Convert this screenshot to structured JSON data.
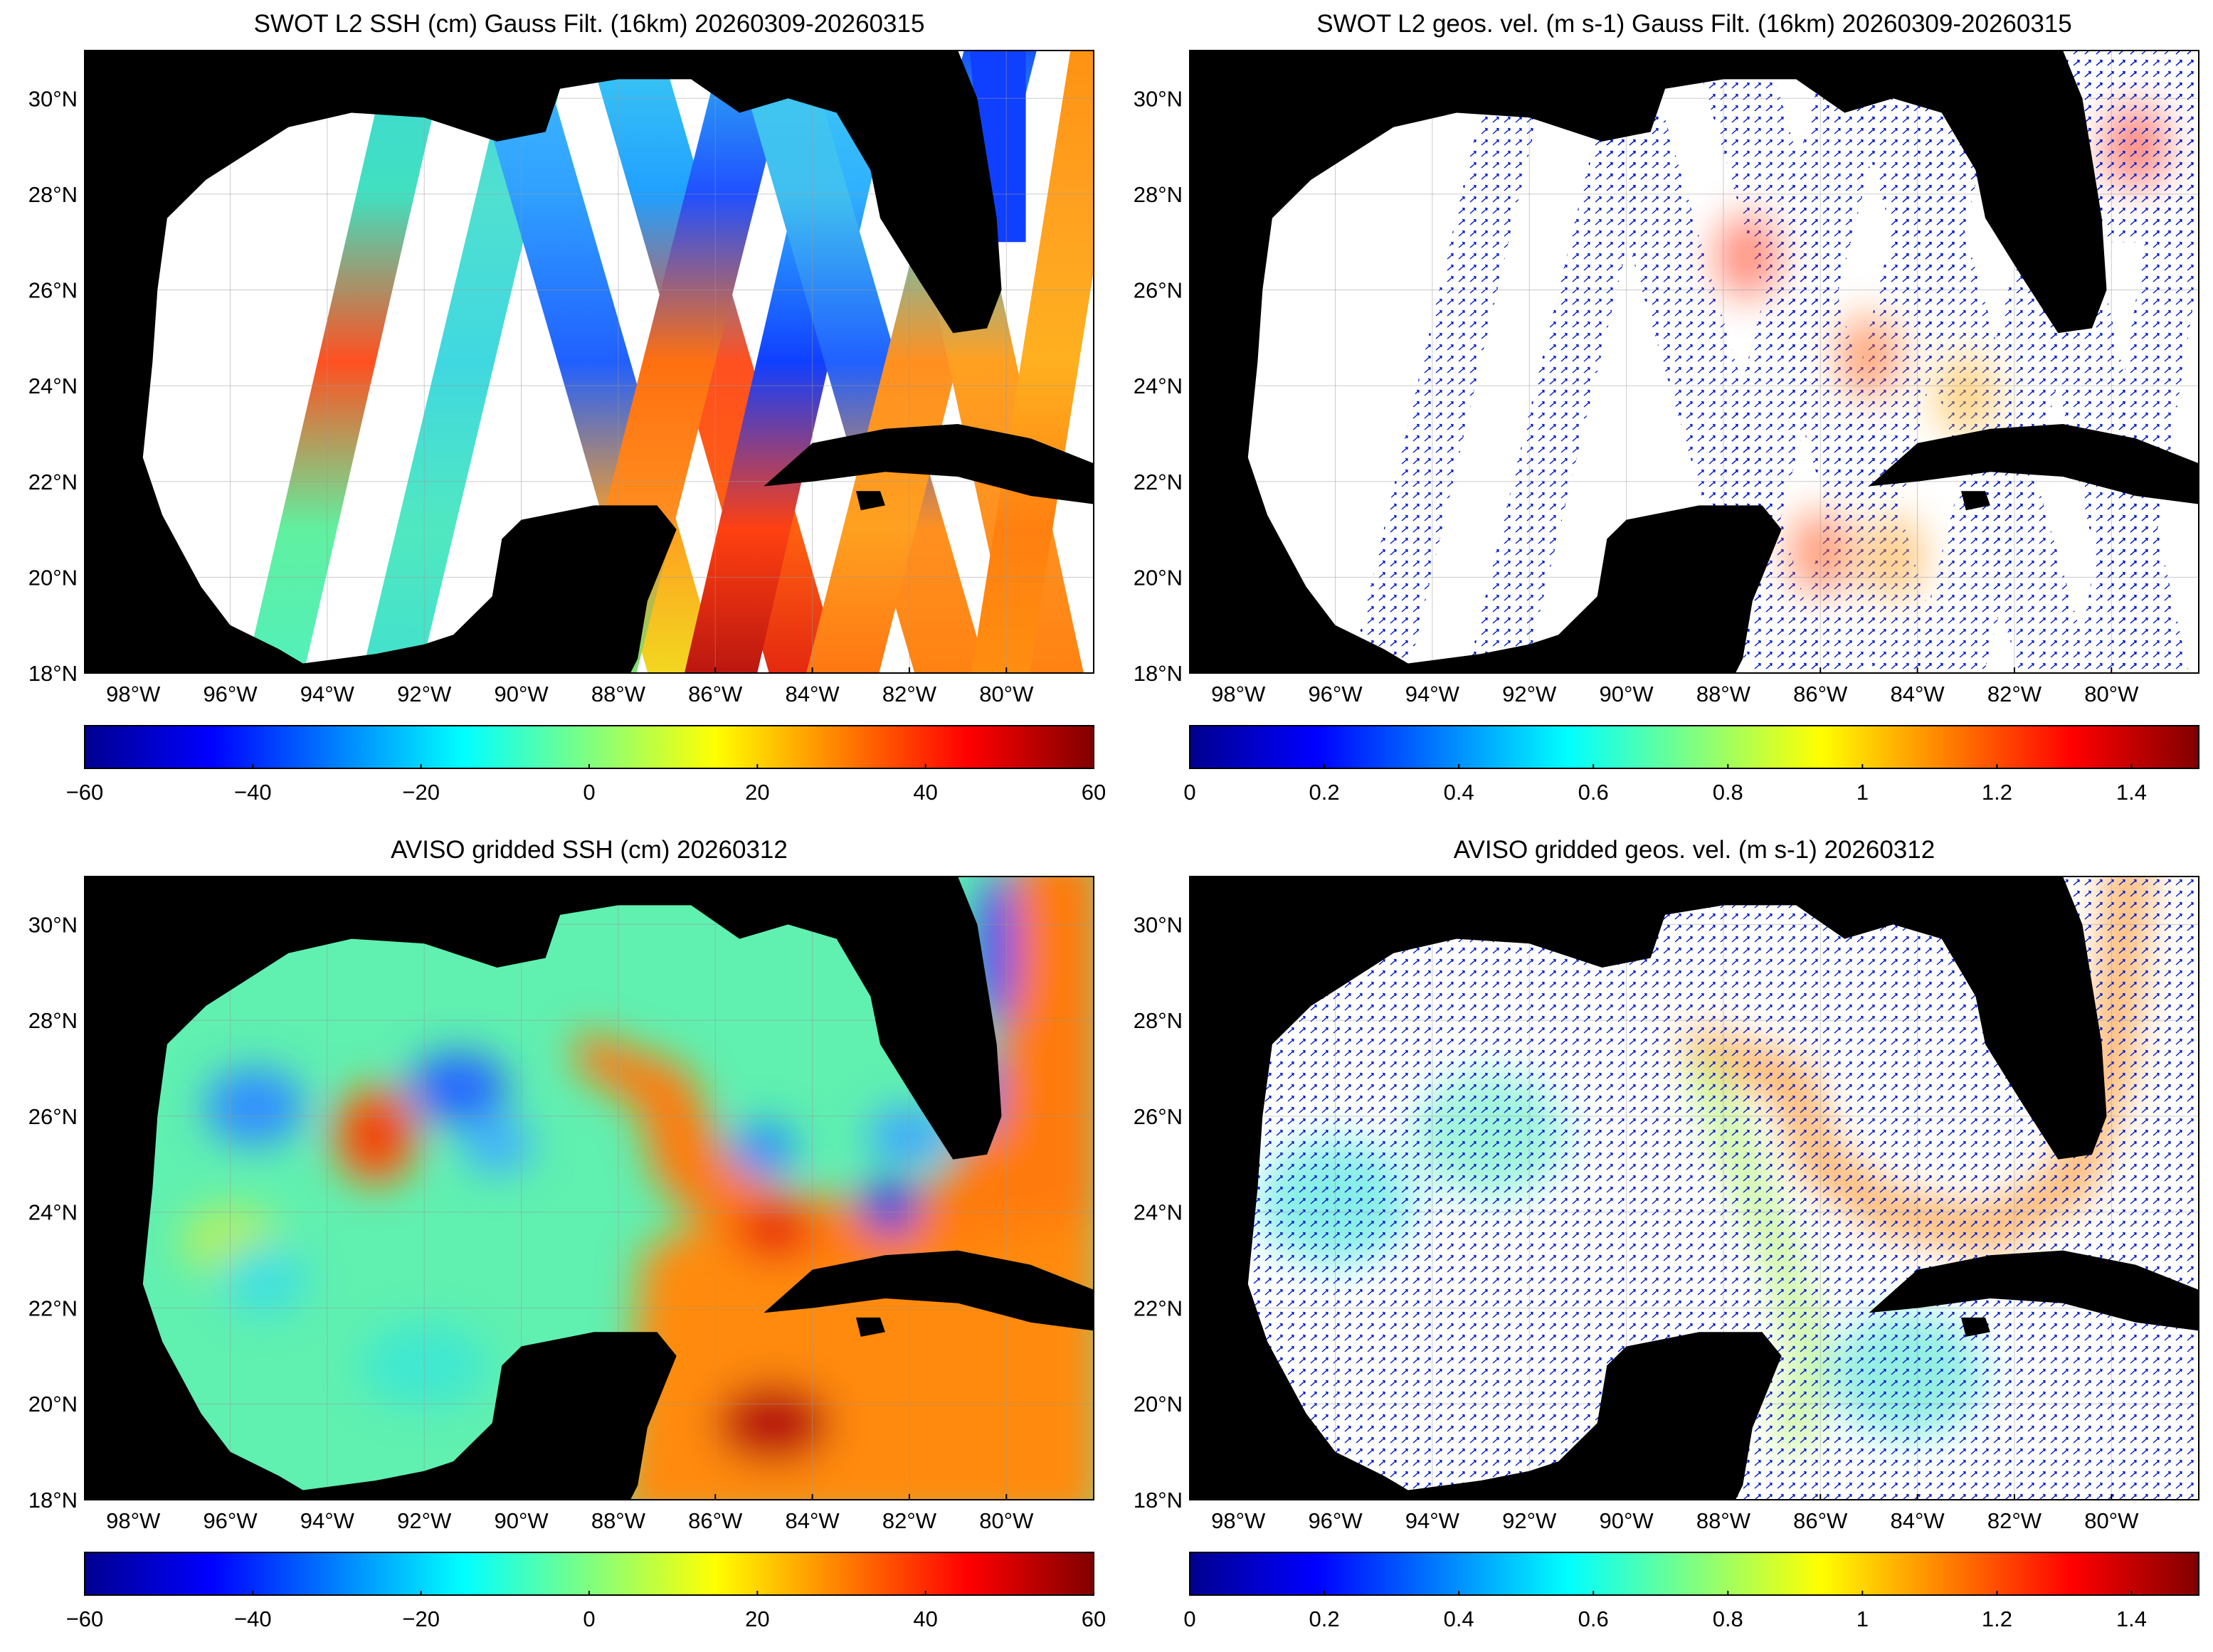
{
  "chart_data": [
    {
      "type": "map",
      "title": "SWOT L2 SSH (cm) Gauss Filt. (16km) 20260309-20260315",
      "xlim": [
        -99,
        -78.2
      ],
      "ylim": [
        18,
        31
      ],
      "grid": true,
      "xticks": [
        {
          "value": -98,
          "label": "98°W"
        },
        {
          "value": -96,
          "label": "96°W"
        },
        {
          "value": -94,
          "label": "94°W"
        },
        {
          "value": -92,
          "label": "92°W"
        },
        {
          "value": -90,
          "label": "90°W"
        },
        {
          "value": -88,
          "label": "88°W"
        },
        {
          "value": -86,
          "label": "86°W"
        },
        {
          "value": -84,
          "label": "84°W"
        },
        {
          "value": -82,
          "label": "82°W"
        },
        {
          "value": -80,
          "label": "80°W"
        }
      ],
      "yticks": [
        {
          "value": 18,
          "label": "18°N"
        },
        {
          "value": 20,
          "label": "20°N"
        },
        {
          "value": 22,
          "label": "22°N"
        },
        {
          "value": 24,
          "label": "24°N"
        },
        {
          "value": 26,
          "label": "26°N"
        },
        {
          "value": 28,
          "label": "28°N"
        },
        {
          "value": 30,
          "label": "30°N"
        }
      ],
      "colorbar": {
        "lim": [
          -60,
          60
        ],
        "ticks": [
          {
            "value": -60,
            "label": "−60"
          },
          {
            "value": -40,
            "label": "−40"
          },
          {
            "value": -20,
            "label": "−20"
          },
          0,
          20,
          40,
          60
        ]
      }
    },
    {
      "type": "map",
      "title": "SWOT L2 geos. vel. (m s-1) Gauss Filt. (16km) 20260309-20260315",
      "xlim": [
        -99,
        -78.2
      ],
      "ylim": [
        18,
        31
      ],
      "grid": true,
      "xticks": [
        {
          "value": -98,
          "label": "98°W"
        },
        {
          "value": -96,
          "label": "96°W"
        },
        {
          "value": -94,
          "label": "94°W"
        },
        {
          "value": -92,
          "label": "92°W"
        },
        {
          "value": -90,
          "label": "90°W"
        },
        {
          "value": -88,
          "label": "88°W"
        },
        {
          "value": -86,
          "label": "86°W"
        },
        {
          "value": -84,
          "label": "84°W"
        },
        {
          "value": -82,
          "label": "82°W"
        },
        {
          "value": -80,
          "label": "80°W"
        }
      ],
      "yticks": [
        {
          "value": 18,
          "label": "18°N"
        },
        {
          "value": 20,
          "label": "20°N"
        },
        {
          "value": 22,
          "label": "22°N"
        },
        {
          "value": 24,
          "label": "24°N"
        },
        {
          "value": 26,
          "label": "26°N"
        },
        {
          "value": 28,
          "label": "28°N"
        },
        {
          "value": 30,
          "label": "30°N"
        }
      ],
      "colorbar": {
        "lim": [
          0,
          1.5
        ],
        "ticks": [
          0,
          0.2,
          0.4,
          0.6,
          0.8,
          1,
          1.2,
          1.4
        ]
      }
    },
    {
      "type": "map",
      "title": "AVISO gridded SSH (cm) 20260312",
      "xlim": [
        -99,
        -78.2
      ],
      "ylim": [
        18,
        31
      ],
      "grid": true,
      "xticks": [
        {
          "value": -98,
          "label": "98°W"
        },
        {
          "value": -96,
          "label": "96°W"
        },
        {
          "value": -94,
          "label": "94°W"
        },
        {
          "value": -92,
          "label": "92°W"
        },
        {
          "value": -90,
          "label": "90°W"
        },
        {
          "value": -88,
          "label": "88°W"
        },
        {
          "value": -86,
          "label": "86°W"
        },
        {
          "value": -84,
          "label": "84°W"
        },
        {
          "value": -82,
          "label": "82°W"
        },
        {
          "value": -80,
          "label": "80°W"
        }
      ],
      "yticks": [
        {
          "value": 18,
          "label": "18°N"
        },
        {
          "value": 20,
          "label": "20°N"
        },
        {
          "value": 22,
          "label": "22°N"
        },
        {
          "value": 24,
          "label": "24°N"
        },
        {
          "value": 26,
          "label": "26°N"
        },
        {
          "value": 28,
          "label": "28°N"
        },
        {
          "value": 30,
          "label": "30°N"
        }
      ],
      "colorbar": {
        "lim": [
          -60,
          60
        ],
        "ticks": [
          {
            "value": -60,
            "label": "−60"
          },
          {
            "value": -40,
            "label": "−40"
          },
          {
            "value": -20,
            "label": "−20"
          },
          0,
          20,
          40,
          60
        ]
      }
    },
    {
      "type": "map",
      "title": "AVISO gridded geos. vel. (m s-1)  20260312",
      "xlim": [
        -99,
        -78.2
      ],
      "ylim": [
        18,
        31
      ],
      "grid": true,
      "xticks": [
        {
          "value": -98,
          "label": "98°W"
        },
        {
          "value": -96,
          "label": "96°W"
        },
        {
          "value": -94,
          "label": "94°W"
        },
        {
          "value": -92,
          "label": "92°W"
        },
        {
          "value": -90,
          "label": "90°W"
        },
        {
          "value": -88,
          "label": "88°W"
        },
        {
          "value": -86,
          "label": "86°W"
        },
        {
          "value": -84,
          "label": "84°W"
        },
        {
          "value": -82,
          "label": "82°W"
        },
        {
          "value": -80,
          "label": "80°W"
        }
      ],
      "yticks": [
        {
          "value": 18,
          "label": "18°N"
        },
        {
          "value": 20,
          "label": "20°N"
        },
        {
          "value": 22,
          "label": "22°N"
        },
        {
          "value": 24,
          "label": "24°N"
        },
        {
          "value": 26,
          "label": "26°N"
        },
        {
          "value": 28,
          "label": "28°N"
        },
        {
          "value": 30,
          "label": "30°N"
        }
      ],
      "colorbar": {
        "lim": [
          0,
          1.5
        ],
        "ticks": [
          0,
          0.2,
          0.4,
          0.6,
          0.8,
          1,
          1.2,
          1.4
        ]
      }
    }
  ]
}
